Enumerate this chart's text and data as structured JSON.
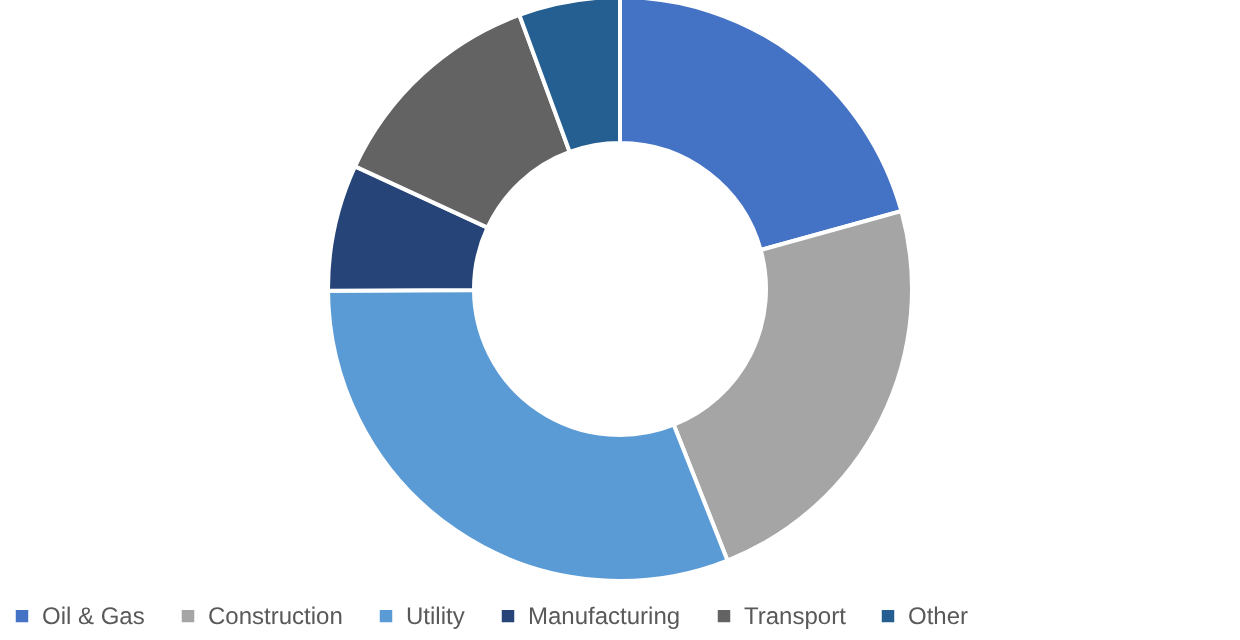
{
  "chart_data": {
    "type": "donut",
    "categories": [
      "Oil & Gas",
      "Construction",
      "Utility",
      "Manufacturing",
      "Transport",
      "Other"
    ],
    "values": [
      20.7,
      23.3,
      30.9,
      7,
      12.5,
      5.6
    ],
    "colors": [
      "#4472c4",
      "#a5a5a5",
      "#5b9bd5",
      "#264478",
      "#636363",
      "#255e91"
    ],
    "legend": "bottom"
  }
}
